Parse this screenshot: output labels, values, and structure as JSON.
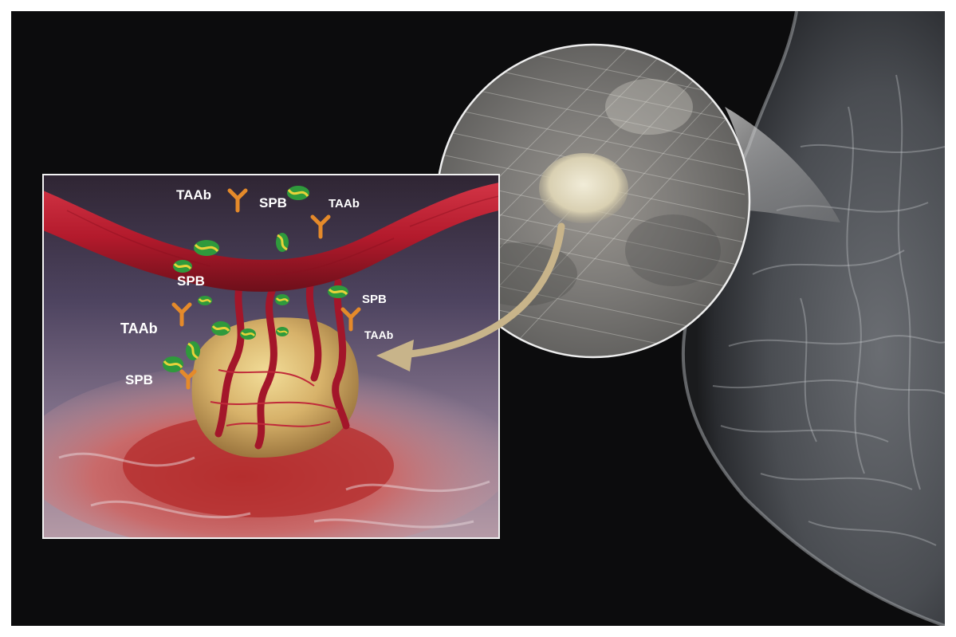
{
  "labels": {
    "taab_top": "TAAb",
    "spb_top": "SPB",
    "taab_top_right": "TAAb",
    "spb_mid_left": "SPB",
    "spb_mid_right": "SPB",
    "taab_mid_left": "TAAb",
    "taab_mid_right": "TAAb",
    "spb_bottom_left": "SPB"
  },
  "colors": {
    "background": "#0c0c0d",
    "vessel": "#b31a2c",
    "antibody": "#e58a2a",
    "protein_green": "#2f9a3c",
    "protein_yellow": "#e8d23a",
    "arrow": "#c8b48a"
  }
}
